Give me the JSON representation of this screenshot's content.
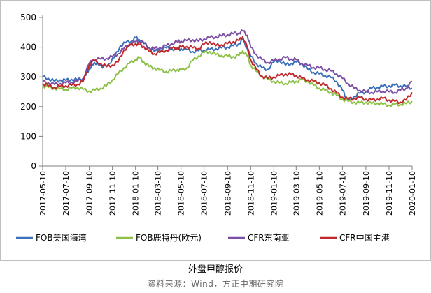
{
  "caption": "外盘甲醇报价",
  "source": "资料来源：Wind，方正中期研究院",
  "chart_data": {
    "type": "line",
    "title": "",
    "xlabel": "",
    "ylabel": "",
    "ylim": [
      0,
      500
    ],
    "yticks": [
      0,
      100,
      200,
      300,
      400,
      500
    ],
    "xlim": [
      "2017-05-10",
      "2020-01-10"
    ],
    "xticks": [
      "2017-05-10",
      "2017-07-10",
      "2017-09-10",
      "2017-11-10",
      "2018-01-10",
      "2018-03-10",
      "2018-05-10",
      "2018-07-10",
      "2018-09-10",
      "2018-11-10",
      "2019-01-10",
      "2019-03-10",
      "2019-05-10",
      "2019-07-10",
      "2019-09-10",
      "2019-11-10",
      "2020-01-10"
    ],
    "grid": false,
    "legend": "bottom",
    "series": [
      {
        "name": "FOB美国海湾",
        "color": "#3a6fba",
        "points": [
          [
            "2017-05-10",
            300
          ],
          [
            "2017-05-25",
            295
          ],
          [
            "2017-06-10",
            285
          ],
          [
            "2017-06-25",
            290
          ],
          [
            "2017-07-10",
            288
          ],
          [
            "2017-07-25",
            292
          ],
          [
            "2017-08-10",
            290
          ],
          [
            "2017-08-25",
            295
          ],
          [
            "2017-09-01",
            305
          ],
          [
            "2017-09-10",
            330
          ],
          [
            "2017-09-20",
            340
          ],
          [
            "2017-10-01",
            350
          ],
          [
            "2017-10-15",
            330
          ],
          [
            "2017-11-01",
            345
          ],
          [
            "2017-11-15",
            365
          ],
          [
            "2017-12-01",
            405
          ],
          [
            "2017-12-15",
            415
          ],
          [
            "2018-01-01",
            422
          ],
          [
            "2018-01-10",
            432
          ],
          [
            "2018-01-20",
            425
          ],
          [
            "2018-02-01",
            412
          ],
          [
            "2018-02-15",
            398
          ],
          [
            "2018-03-01",
            385
          ],
          [
            "2018-03-15",
            392
          ],
          [
            "2018-04-01",
            398
          ],
          [
            "2018-04-15",
            395
          ],
          [
            "2018-05-01",
            392
          ],
          [
            "2018-05-10",
            395
          ],
          [
            "2018-05-25",
            392
          ],
          [
            "2018-06-10",
            385
          ],
          [
            "2018-06-25",
            388
          ],
          [
            "2018-07-10",
            390
          ],
          [
            "2018-07-25",
            392
          ],
          [
            "2018-08-10",
            395
          ],
          [
            "2018-08-25",
            398
          ],
          [
            "2018-09-10",
            400
          ],
          [
            "2018-09-25",
            405
          ],
          [
            "2018-10-10",
            412
          ],
          [
            "2018-10-20",
            425
          ],
          [
            "2018-11-01",
            395
          ],
          [
            "2018-11-10",
            370
          ],
          [
            "2018-11-25",
            345
          ],
          [
            "2018-12-10",
            330
          ],
          [
            "2018-12-25",
            325
          ],
          [
            "2019-01-10",
            350
          ],
          [
            "2019-01-25",
            355
          ],
          [
            "2019-02-10",
            340
          ],
          [
            "2019-02-25",
            345
          ],
          [
            "2019-03-10",
            350
          ],
          [
            "2019-03-25",
            345
          ],
          [
            "2019-04-10",
            325
          ],
          [
            "2019-04-25",
            315
          ],
          [
            "2019-05-10",
            310
          ],
          [
            "2019-05-25",
            305
          ],
          [
            "2019-06-10",
            298
          ],
          [
            "2019-06-25",
            285
          ],
          [
            "2019-07-10",
            255
          ],
          [
            "2019-07-20",
            230
          ],
          [
            "2019-07-30",
            220
          ],
          [
            "2019-08-10",
            235
          ],
          [
            "2019-08-25",
            245
          ],
          [
            "2019-09-10",
            250
          ],
          [
            "2019-09-25",
            262
          ],
          [
            "2019-10-10",
            265
          ],
          [
            "2019-10-25",
            268
          ],
          [
            "2019-11-10",
            270
          ],
          [
            "2019-11-25",
            272
          ],
          [
            "2019-12-10",
            270
          ],
          [
            "2019-12-25",
            268
          ],
          [
            "2020-01-10",
            262
          ]
        ]
      },
      {
        "name": "FOB鹿特丹(欧元)",
        "color": "#8cc047",
        "points": [
          [
            "2017-05-10",
            270
          ],
          [
            "2017-05-25",
            265
          ],
          [
            "2017-06-10",
            262
          ],
          [
            "2017-06-25",
            260
          ],
          [
            "2017-07-10",
            258
          ],
          [
            "2017-07-25",
            262
          ],
          [
            "2017-08-10",
            265
          ],
          [
            "2017-08-25",
            258
          ],
          [
            "2017-09-10",
            252
          ],
          [
            "2017-09-25",
            255
          ],
          [
            "2017-10-10",
            262
          ],
          [
            "2017-10-25",
            270
          ],
          [
            "2017-11-10",
            290
          ],
          [
            "2017-11-25",
            310
          ],
          [
            "2017-12-10",
            330
          ],
          [
            "2017-12-25",
            345
          ],
          [
            "2018-01-10",
            358
          ],
          [
            "2018-01-20",
            365
          ],
          [
            "2018-02-01",
            350
          ],
          [
            "2018-02-15",
            335
          ],
          [
            "2018-03-01",
            330
          ],
          [
            "2018-03-15",
            322
          ],
          [
            "2018-04-01",
            318
          ],
          [
            "2018-04-15",
            320
          ],
          [
            "2018-05-01",
            325
          ],
          [
            "2018-05-10",
            322
          ],
          [
            "2018-05-25",
            330
          ],
          [
            "2018-06-10",
            355
          ],
          [
            "2018-06-25",
            370
          ],
          [
            "2018-07-10",
            382
          ],
          [
            "2018-07-25",
            385
          ],
          [
            "2018-08-10",
            375
          ],
          [
            "2018-08-25",
            372
          ],
          [
            "2018-09-10",
            370
          ],
          [
            "2018-09-25",
            368
          ],
          [
            "2018-10-10",
            372
          ],
          [
            "2018-10-20",
            388
          ],
          [
            "2018-11-01",
            370
          ],
          [
            "2018-11-10",
            340
          ],
          [
            "2018-11-25",
            318
          ],
          [
            "2018-12-10",
            302
          ],
          [
            "2018-12-25",
            292
          ],
          [
            "2019-01-10",
            285
          ],
          [
            "2019-01-25",
            280
          ],
          [
            "2019-02-10",
            278
          ],
          [
            "2019-02-25",
            282
          ],
          [
            "2019-03-10",
            285
          ],
          [
            "2019-03-25",
            290
          ],
          [
            "2019-04-10",
            285
          ],
          [
            "2019-04-25",
            272
          ],
          [
            "2019-05-10",
            262
          ],
          [
            "2019-05-25",
            255
          ],
          [
            "2019-06-10",
            248
          ],
          [
            "2019-06-25",
            238
          ],
          [
            "2019-07-10",
            225
          ],
          [
            "2019-07-25",
            218
          ],
          [
            "2019-08-10",
            215
          ],
          [
            "2019-08-25",
            212
          ],
          [
            "2019-09-10",
            215
          ],
          [
            "2019-09-25",
            210
          ],
          [
            "2019-10-10",
            212
          ],
          [
            "2019-10-25",
            208
          ],
          [
            "2019-11-10",
            205
          ],
          [
            "2019-11-25",
            207
          ],
          [
            "2019-12-10",
            208
          ],
          [
            "2019-12-25",
            210
          ],
          [
            "2020-01-10",
            218
          ]
        ]
      },
      {
        "name": "CFR东南亚",
        "color": "#7b4fa6",
        "points": [
          [
            "2017-05-10",
            285
          ],
          [
            "2017-05-25",
            280
          ],
          [
            "2017-06-10",
            275
          ],
          [
            "2017-06-25",
            278
          ],
          [
            "2017-07-10",
            280
          ],
          [
            "2017-07-25",
            282
          ],
          [
            "2017-08-10",
            285
          ],
          [
            "2017-08-25",
            295
          ],
          [
            "2017-09-10",
            345
          ],
          [
            "2017-09-20",
            358
          ],
          [
            "2017-10-10",
            360
          ],
          [
            "2017-10-25",
            362
          ],
          [
            "2017-11-10",
            368
          ],
          [
            "2017-11-25",
            378
          ],
          [
            "2017-12-10",
            395
          ],
          [
            "2017-12-25",
            410
          ],
          [
            "2018-01-10",
            418
          ],
          [
            "2018-01-20",
            420
          ],
          [
            "2018-02-01",
            415
          ],
          [
            "2018-02-15",
            398
          ],
          [
            "2018-03-01",
            395
          ],
          [
            "2018-03-15",
            398
          ],
          [
            "2018-04-01",
            405
          ],
          [
            "2018-04-15",
            412
          ],
          [
            "2018-05-01",
            418
          ],
          [
            "2018-05-10",
            420
          ],
          [
            "2018-05-25",
            422
          ],
          [
            "2018-06-10",
            425
          ],
          [
            "2018-06-25",
            420
          ],
          [
            "2018-07-10",
            428
          ],
          [
            "2018-07-25",
            432
          ],
          [
            "2018-08-10",
            435
          ],
          [
            "2018-08-25",
            438
          ],
          [
            "2018-09-10",
            442
          ],
          [
            "2018-09-25",
            445
          ],
          [
            "2018-10-10",
            448
          ],
          [
            "2018-10-20",
            455
          ],
          [
            "2018-11-01",
            440
          ],
          [
            "2018-11-10",
            400
          ],
          [
            "2018-11-25",
            375
          ],
          [
            "2018-12-10",
            358
          ],
          [
            "2018-12-25",
            348
          ],
          [
            "2019-01-10",
            355
          ],
          [
            "2019-01-25",
            360
          ],
          [
            "2019-02-10",
            365
          ],
          [
            "2019-02-25",
            360
          ],
          [
            "2019-03-10",
            358
          ],
          [
            "2019-03-25",
            345
          ],
          [
            "2019-04-10",
            338
          ],
          [
            "2019-04-25",
            332
          ],
          [
            "2019-05-10",
            330
          ],
          [
            "2019-05-25",
            325
          ],
          [
            "2019-06-10",
            320
          ],
          [
            "2019-06-25",
            310
          ],
          [
            "2019-07-10",
            295
          ],
          [
            "2019-07-25",
            278
          ],
          [
            "2019-08-10",
            262
          ],
          [
            "2019-08-25",
            255
          ],
          [
            "2019-09-10",
            250
          ],
          [
            "2019-09-25",
            248
          ],
          [
            "2019-10-10",
            250
          ],
          [
            "2019-10-25",
            252
          ],
          [
            "2019-11-10",
            250
          ],
          [
            "2019-11-25",
            248
          ],
          [
            "2019-12-10",
            255
          ],
          [
            "2019-12-25",
            262
          ],
          [
            "2020-01-10",
            285
          ]
        ]
      },
      {
        "name": "CFR中国主港",
        "color": "#c0282c",
        "points": [
          [
            "2017-05-10",
            278
          ],
          [
            "2017-05-25",
            270
          ],
          [
            "2017-06-10",
            265
          ],
          [
            "2017-06-25",
            268
          ],
          [
            "2017-07-10",
            270
          ],
          [
            "2017-07-25",
            272
          ],
          [
            "2017-08-10",
            275
          ],
          [
            "2017-08-25",
            285
          ],
          [
            "2017-09-10",
            340
          ],
          [
            "2017-09-20",
            355
          ],
          [
            "2017-10-10",
            345
          ],
          [
            "2017-10-25",
            335
          ],
          [
            "2017-11-10",
            340
          ],
          [
            "2017-11-25",
            350
          ],
          [
            "2017-12-10",
            390
          ],
          [
            "2017-12-25",
            405
          ],
          [
            "2018-01-10",
            412
          ],
          [
            "2018-01-20",
            408
          ],
          [
            "2018-02-01",
            402
          ],
          [
            "2018-02-15",
            385
          ],
          [
            "2018-03-01",
            378
          ],
          [
            "2018-03-15",
            382
          ],
          [
            "2018-04-01",
            390
          ],
          [
            "2018-04-15",
            395
          ],
          [
            "2018-05-01",
            398
          ],
          [
            "2018-05-10",
            400
          ],
          [
            "2018-05-25",
            402
          ],
          [
            "2018-06-10",
            398
          ],
          [
            "2018-06-25",
            395
          ],
          [
            "2018-07-10",
            410
          ],
          [
            "2018-07-25",
            418
          ],
          [
            "2018-08-10",
            405
          ],
          [
            "2018-08-25",
            408
          ],
          [
            "2018-09-10",
            412
          ],
          [
            "2018-09-25",
            418
          ],
          [
            "2018-10-10",
            422
          ],
          [
            "2018-10-20",
            435
          ],
          [
            "2018-11-01",
            400
          ],
          [
            "2018-11-10",
            358
          ],
          [
            "2018-11-25",
            325
          ],
          [
            "2018-12-10",
            302
          ],
          [
            "2018-12-25",
            295
          ],
          [
            "2019-01-10",
            300
          ],
          [
            "2019-01-25",
            305
          ],
          [
            "2019-02-10",
            310
          ],
          [
            "2019-02-25",
            308
          ],
          [
            "2019-03-10",
            305
          ],
          [
            "2019-03-25",
            295
          ],
          [
            "2019-04-10",
            290
          ],
          [
            "2019-04-25",
            285
          ],
          [
            "2019-05-10",
            280
          ],
          [
            "2019-05-25",
            272
          ],
          [
            "2019-06-10",
            260
          ],
          [
            "2019-06-25",
            245
          ],
          [
            "2019-07-10",
            232
          ],
          [
            "2019-07-25",
            225
          ],
          [
            "2019-08-10",
            228
          ],
          [
            "2019-08-25",
            230
          ],
          [
            "2019-09-10",
            225
          ],
          [
            "2019-09-25",
            222
          ],
          [
            "2019-10-10",
            225
          ],
          [
            "2019-10-25",
            228
          ],
          [
            "2019-11-10",
            222
          ],
          [
            "2019-11-25",
            218
          ],
          [
            "2019-12-10",
            215
          ],
          [
            "2019-12-25",
            222
          ],
          [
            "2020-01-10",
            248
          ]
        ]
      }
    ]
  }
}
